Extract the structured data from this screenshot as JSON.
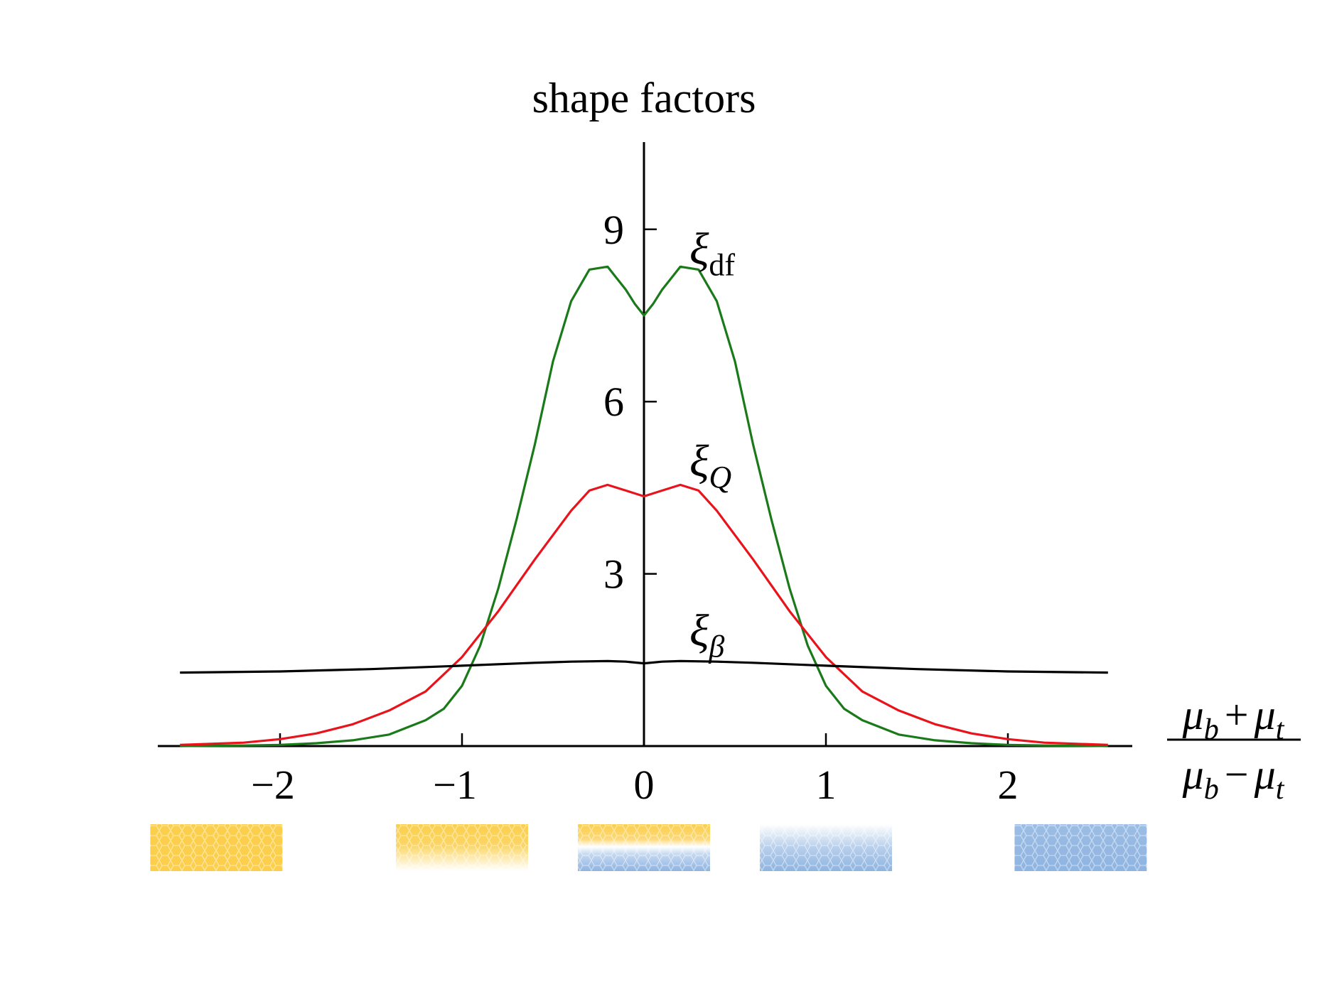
{
  "chart_data": {
    "type": "line",
    "title": "shape factors",
    "xlabel": {
      "numerator": {
        "a": "μ",
        "a_sub": "b",
        "op": "+",
        "b": "μ",
        "b_sub": "t"
      },
      "denominator": {
        "a": "μ",
        "a_sub": "b",
        "op": "−",
        "b": "μ",
        "b_sub": "t"
      }
    },
    "ylabel": "",
    "xlim": [
      -2.6,
      2.6
    ],
    "ylim": [
      0,
      10.5
    ],
    "x_ticks": [
      {
        "value": -2,
        "label": "−2"
      },
      {
        "value": -1,
        "label": "−1"
      },
      {
        "value": 0,
        "label": "0"
      },
      {
        "value": 1,
        "label": "1"
      },
      {
        "value": 2,
        "label": "2"
      }
    ],
    "y_ticks": [
      {
        "value": 3,
        "label": "3"
      },
      {
        "value": 6,
        "label": "6"
      },
      {
        "value": 9,
        "label": "9"
      }
    ],
    "grid": false,
    "legend": "none",
    "series": [
      {
        "label_main": "ξ",
        "label_sub": "df",
        "label_x": 0.25,
        "label_y": 8.4,
        "color": "#1a7a1a",
        "x": [
          -2.55,
          -2.2,
          -2.0,
          -1.8,
          -1.6,
          -1.4,
          -1.2,
          -1.1,
          -1.0,
          -0.9,
          -0.8,
          -0.7,
          -0.6,
          -0.5,
          -0.4,
          -0.3,
          -0.2,
          -0.15,
          -0.1,
          -0.05,
          0,
          0.05,
          0.1,
          0.15,
          0.2,
          0.3,
          0.4,
          0.5,
          0.6,
          0.7,
          0.8,
          0.9,
          1.0,
          1.1,
          1.2,
          1.4,
          1.6,
          1.8,
          2.0,
          2.2,
          2.55
        ],
        "y": [
          0.0,
          0.01,
          0.02,
          0.05,
          0.1,
          0.2,
          0.45,
          0.65,
          1.05,
          1.75,
          2.75,
          3.95,
          5.25,
          6.7,
          7.75,
          8.3,
          8.35,
          8.15,
          7.95,
          7.7,
          7.5,
          7.7,
          7.95,
          8.15,
          8.35,
          8.3,
          7.75,
          6.7,
          5.25,
          3.95,
          2.75,
          1.75,
          1.05,
          0.65,
          0.45,
          0.2,
          0.1,
          0.05,
          0.02,
          0.01,
          0.0
        ]
      },
      {
        "label_main": "ξ",
        "label_sub": "Q",
        "label_x": 0.25,
        "label_y": 4.7,
        "color": "#e8131b",
        "x": [
          -2.55,
          -2.2,
          -2.0,
          -1.8,
          -1.6,
          -1.4,
          -1.2,
          -1.0,
          -0.8,
          -0.6,
          -0.4,
          -0.3,
          -0.2,
          -0.1,
          0,
          0.1,
          0.2,
          0.3,
          0.4,
          0.6,
          0.8,
          1.0,
          1.2,
          1.4,
          1.6,
          1.8,
          2.0,
          2.2,
          2.55
        ],
        "y": [
          0.02,
          0.06,
          0.12,
          0.22,
          0.38,
          0.62,
          0.95,
          1.55,
          2.35,
          3.25,
          4.1,
          4.45,
          4.55,
          4.45,
          4.35,
          4.45,
          4.55,
          4.45,
          4.1,
          3.25,
          2.35,
          1.55,
          0.95,
          0.62,
          0.38,
          0.22,
          0.12,
          0.06,
          0.02
        ]
      },
      {
        "label_main": "ξ",
        "label_sub": "β",
        "label_x": 0.25,
        "label_y": 1.75,
        "color": "#000000",
        "x": [
          -2.55,
          -2.0,
          -1.5,
          -1.0,
          -0.6,
          -0.4,
          -0.2,
          -0.1,
          0,
          0.1,
          0.2,
          0.4,
          0.6,
          1.0,
          1.5,
          2.0,
          2.55
        ],
        "y": [
          1.28,
          1.3,
          1.34,
          1.4,
          1.45,
          1.47,
          1.48,
          1.47,
          1.44,
          1.47,
          1.48,
          1.47,
          1.45,
          1.4,
          1.34,
          1.3,
          1.28
        ]
      }
    ],
    "swatches": [
      {
        "kind": "yellow",
        "x_center": -2.35
      },
      {
        "kind": "yellow-fade",
        "x_center": -1.0
      },
      {
        "kind": "yellow-blue",
        "x_center": 0.0
      },
      {
        "kind": "blue-fade",
        "x_center": 1.0
      },
      {
        "kind": "blue",
        "x_center": 2.4
      }
    ],
    "colors": {
      "axis": "#000000",
      "yellow": "#fbcf4c",
      "blue": "#8fb4e1"
    }
  }
}
